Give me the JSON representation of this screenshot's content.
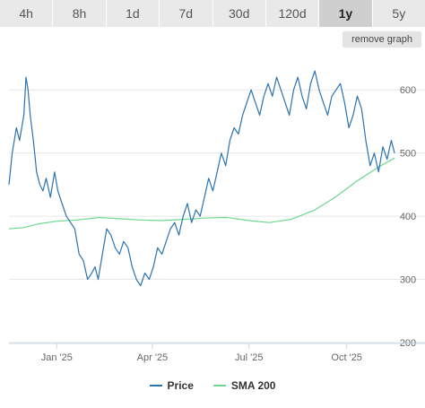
{
  "tabs": [
    {
      "label": "4h",
      "active": false
    },
    {
      "label": "8h",
      "active": false
    },
    {
      "label": "1d",
      "active": false
    },
    {
      "label": "7d",
      "active": false
    },
    {
      "label": "30d",
      "active": false
    },
    {
      "label": "120d",
      "active": false
    },
    {
      "label": "1y",
      "active": true
    },
    {
      "label": "5y",
      "active": false
    }
  ],
  "remove_graph_label": "remove graph",
  "colors": {
    "price": "#2a73b0",
    "sma": "#6fd68f",
    "grid": "#e6e6e6",
    "axis": "#ccd6eb"
  },
  "chart_data": {
    "type": "line",
    "title": "",
    "xlabel": "",
    "ylabel": "",
    "ylim": [
      200,
      650
    ],
    "y_ticks": [
      "200",
      "300",
      "400",
      "500",
      "600"
    ],
    "x_ticks": [
      "Jan '25",
      "Apr '25",
      "Jul '25",
      "Oct '25"
    ],
    "x_range": [
      "2024-11-17",
      "2025-11-15"
    ],
    "legend_position": "bottom",
    "series": [
      {
        "name": "Price",
        "x": [
          "2024-11-17",
          "2024-11-20",
          "2024-11-24",
          "2024-11-27",
          "2024-12-01",
          "2024-12-03",
          "2024-12-05",
          "2024-12-07",
          "2024-12-10",
          "2024-12-13",
          "2024-12-16",
          "2024-12-19",
          "2024-12-22",
          "2024-12-26",
          "2024-12-30",
          "2025-01-02",
          "2025-01-06",
          "2025-01-10",
          "2025-01-14",
          "2025-01-18",
          "2025-01-22",
          "2025-01-26",
          "2025-01-30",
          "2025-02-03",
          "2025-02-06",
          "2025-02-09",
          "2025-02-13",
          "2025-02-17",
          "2025-02-21",
          "2025-02-25",
          "2025-03-01",
          "2025-03-05",
          "2025-03-09",
          "2025-03-13",
          "2025-03-17",
          "2025-03-21",
          "2025-03-25",
          "2025-03-29",
          "2025-04-02",
          "2025-04-06",
          "2025-04-10",
          "2025-04-14",
          "2025-04-18",
          "2025-04-22",
          "2025-04-26",
          "2025-04-30",
          "2025-05-04",
          "2025-05-08",
          "2025-05-12",
          "2025-05-16",
          "2025-05-20",
          "2025-05-24",
          "2025-05-28",
          "2025-06-01",
          "2025-06-05",
          "2025-06-09",
          "2025-06-13",
          "2025-06-17",
          "2025-06-21",
          "2025-06-25",
          "2025-06-29",
          "2025-07-03",
          "2025-07-07",
          "2025-07-11",
          "2025-07-15",
          "2025-07-19",
          "2025-07-23",
          "2025-07-27",
          "2025-07-31",
          "2025-08-04",
          "2025-08-08",
          "2025-08-12",
          "2025-08-16",
          "2025-08-20",
          "2025-08-24",
          "2025-08-28",
          "2025-09-01",
          "2025-09-05",
          "2025-09-09",
          "2025-09-13",
          "2025-09-17",
          "2025-09-21",
          "2025-09-25",
          "2025-09-29",
          "2025-10-03",
          "2025-10-07",
          "2025-10-11",
          "2025-10-15",
          "2025-10-19",
          "2025-10-23",
          "2025-10-27",
          "2025-10-31",
          "2025-11-04",
          "2025-11-08",
          "2025-11-12",
          "2025-11-15"
        ],
        "values": [
          450,
          500,
          540,
          520,
          560,
          620,
          600,
          560,
          520,
          470,
          450,
          440,
          460,
          430,
          470,
          440,
          420,
          400,
          390,
          380,
          340,
          330,
          300,
          310,
          320,
          300,
          340,
          380,
          370,
          350,
          340,
          360,
          350,
          320,
          300,
          290,
          310,
          300,
          320,
          350,
          340,
          360,
          380,
          390,
          370,
          400,
          420,
          390,
          410,
          400,
          430,
          460,
          440,
          470,
          500,
          480,
          520,
          540,
          530,
          560,
          580,
          600,
          580,
          560,
          590,
          610,
          590,
          620,
          600,
          580,
          560,
          600,
          620,
          590,
          570,
          610,
          630,
          600,
          580,
          560,
          590,
          600,
          610,
          580,
          540,
          560,
          590,
          570,
          520,
          480,
          500,
          470,
          510,
          490,
          520,
          500
        ]
      },
      {
        "name": "SMA 200",
        "x": [
          "2024-11-17",
          "2024-12-01",
          "2024-12-15",
          "2025-01-01",
          "2025-01-20",
          "2025-02-10",
          "2025-03-01",
          "2025-03-20",
          "2025-04-10",
          "2025-05-01",
          "2025-05-20",
          "2025-06-10",
          "2025-07-01",
          "2025-07-20",
          "2025-08-10",
          "2025-09-01",
          "2025-09-20",
          "2025-10-10",
          "2025-10-31",
          "2025-11-15"
        ],
        "values": [
          380,
          382,
          388,
          392,
          394,
          398,
          396,
          394,
          393,
          395,
          397,
          398,
          393,
          390,
          395,
          410,
          430,
          455,
          478,
          492
        ]
      }
    ]
  }
}
